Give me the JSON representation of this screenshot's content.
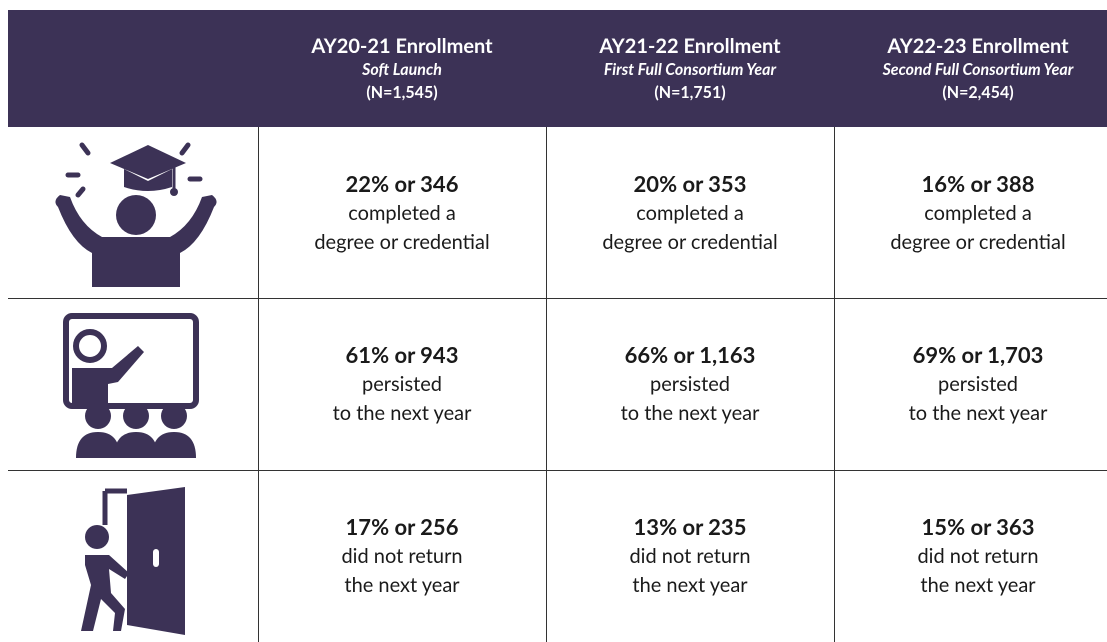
{
  "table": {
    "header": [
      {
        "title": "AY20-21 Enrollment",
        "subtitle": "Soft Launch",
        "n": "(N=1,545)"
      },
      {
        "title": "AY21-22 Enrollment",
        "subtitle": "First Full Consortium Year",
        "n": "(N=1,751)"
      },
      {
        "title": "AY22-23 Enrollment",
        "subtitle": "Second Full Consortium Year",
        "n": "(N=2,454)"
      }
    ],
    "rows": [
      [
        {
          "headline": "22% or 346",
          "lines": [
            "completed a",
            "degree or credential"
          ]
        },
        {
          "headline": "20% or 353",
          "lines": [
            "completed a",
            "degree or credential"
          ]
        },
        {
          "headline": "16% or 388",
          "lines": [
            "completed a",
            "degree or credential"
          ]
        }
      ],
      [
        {
          "headline": "61% or 943",
          "lines": [
            "persisted",
            "to the next year"
          ]
        },
        {
          "headline": "66% or 1,163",
          "lines": [
            "persisted",
            "to the next year"
          ]
        },
        {
          "headline": "69% or 1,703",
          "lines": [
            "persisted",
            "to the next year"
          ]
        }
      ],
      [
        {
          "headline": "17% or 256",
          "lines": [
            "did not return",
            "the next year"
          ]
        },
        {
          "headline": "13% or 235",
          "lines": [
            "did not return",
            "the next year"
          ]
        },
        {
          "headline": "15% or 363",
          "lines": [
            "did not return",
            "the next year"
          ]
        }
      ]
    ]
  }
}
